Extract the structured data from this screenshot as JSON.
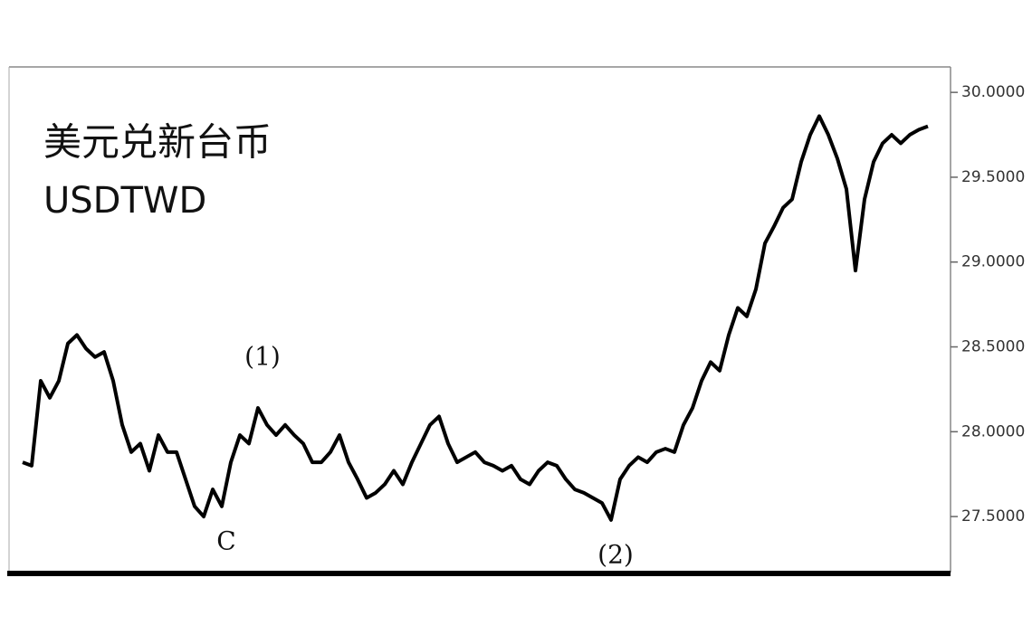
{
  "chart_data": {
    "type": "line",
    "title": "美元兑新台币",
    "subtitle": "USDTWD",
    "series": [
      {
        "name": "USDTWD",
        "color": "#000000",
        "values": [
          27.82,
          27.8,
          28.3,
          28.2,
          28.3,
          28.52,
          28.57,
          28.49,
          28.44,
          28.47,
          28.3,
          28.04,
          27.88,
          27.93,
          27.77,
          27.98,
          27.88,
          27.88,
          27.72,
          27.56,
          27.5,
          27.66,
          27.56,
          27.82,
          27.98,
          27.93,
          28.14,
          28.04,
          27.98,
          28.04,
          27.98,
          27.93,
          27.82,
          27.82,
          27.88,
          27.98,
          27.82,
          27.72,
          27.61,
          27.64,
          27.69,
          27.77,
          27.69,
          27.82,
          27.93,
          28.04,
          28.09,
          27.93,
          27.82,
          27.85,
          27.88,
          27.82,
          27.8,
          27.77,
          27.8,
          27.72,
          27.69,
          27.77,
          27.82,
          27.8,
          27.72,
          27.66,
          27.64,
          27.61,
          27.58,
          27.48,
          27.72,
          27.8,
          27.85,
          27.82,
          27.88,
          27.9,
          27.88,
          28.04,
          28.14,
          28.3,
          28.41,
          28.36,
          28.57,
          28.73,
          28.68,
          28.84,
          29.11,
          29.21,
          29.32,
          29.37,
          29.59,
          29.75,
          29.86,
          29.75,
          29.61,
          29.43,
          28.95,
          29.37,
          29.59,
          29.7,
          29.75,
          29.7,
          29.75,
          29.78,
          29.8
        ]
      }
    ],
    "ylim": [
      27.17,
      30.15
    ],
    "yticks": [
      {
        "value": 27.5,
        "label": "27.5000"
      },
      {
        "value": 28,
        "label": "28.0000"
      },
      {
        "value": 28.5,
        "label": "28.5000"
      },
      {
        "value": 29,
        "label": "29.0000"
      },
      {
        "value": 29.5,
        "label": "29.5000"
      },
      {
        "value": 30,
        "label": "30.0000"
      }
    ],
    "annotations": [
      {
        "text": "C",
        "x": 22,
        "position": "below"
      },
      {
        "text": "(1)",
        "x": 26,
        "position": "above"
      },
      {
        "text": "(2)",
        "x": 65,
        "position": "below"
      }
    ]
  }
}
